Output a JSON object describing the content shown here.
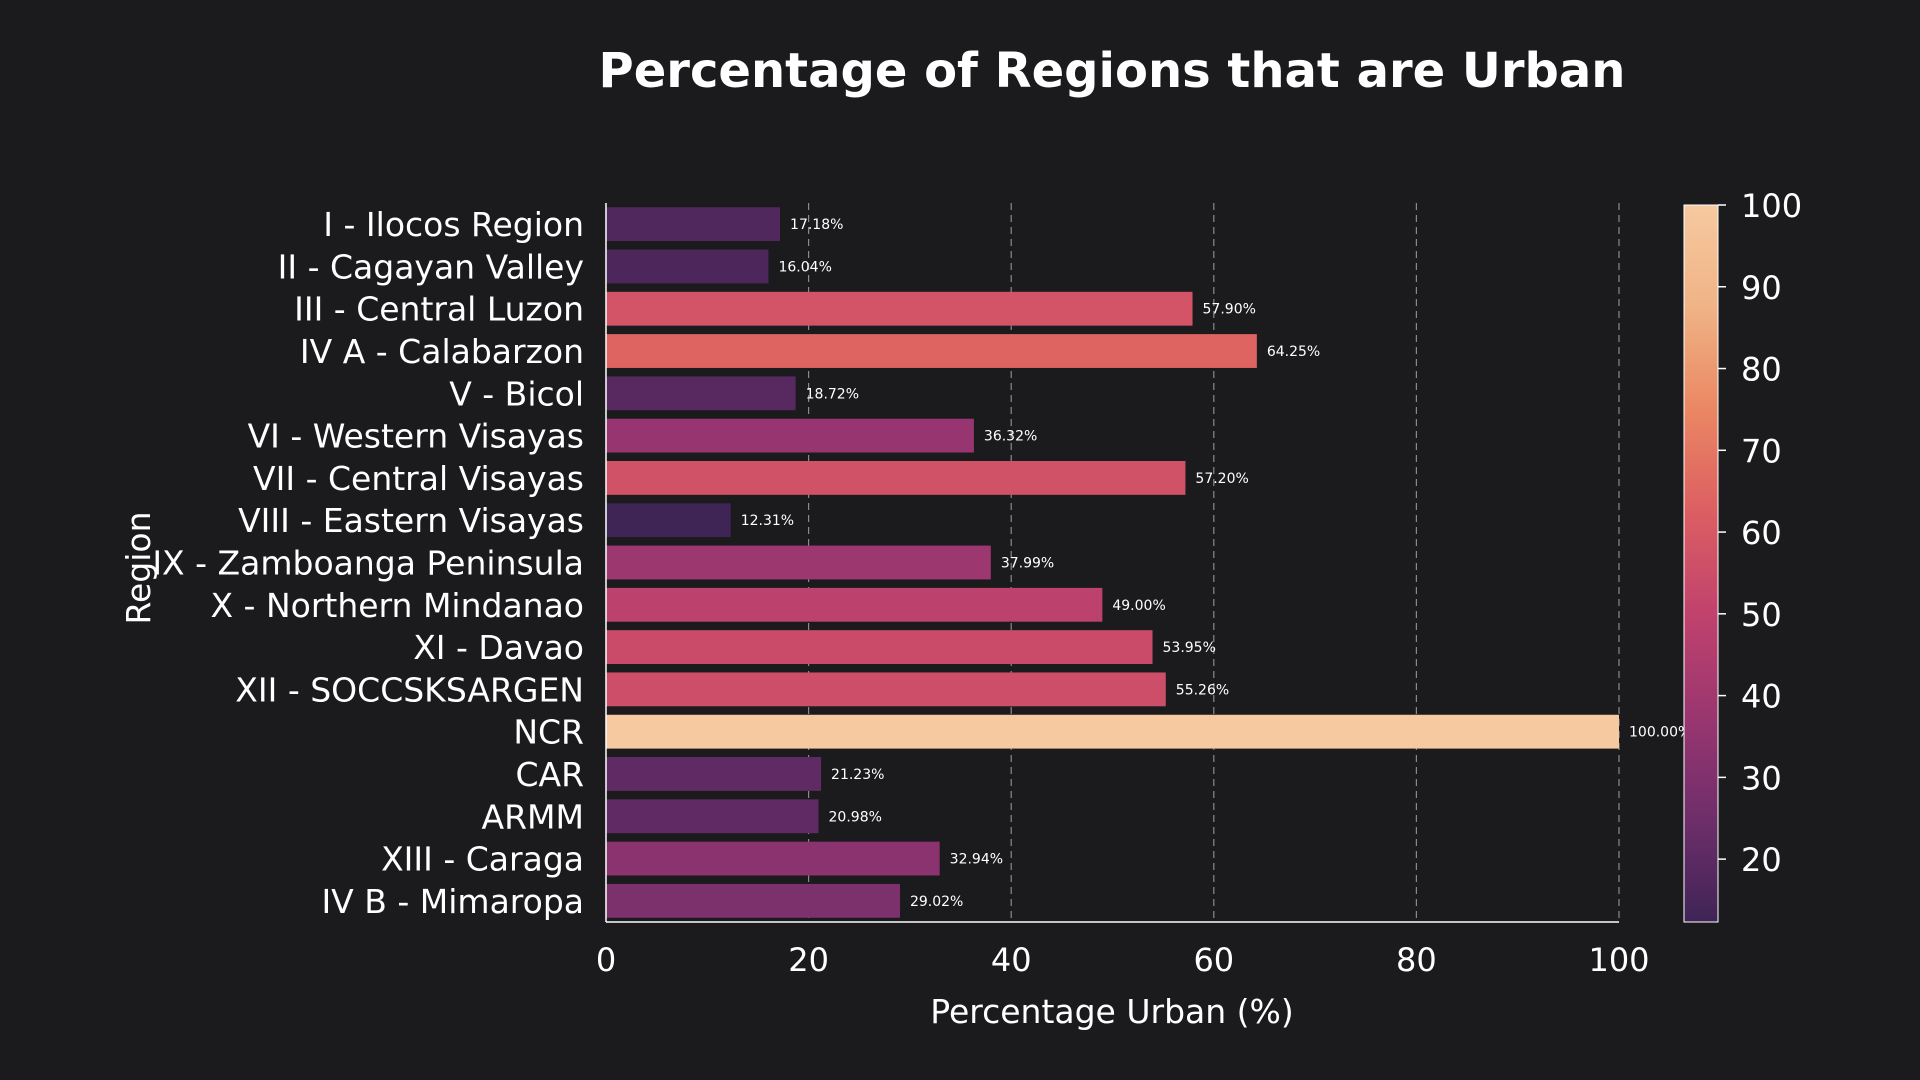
{
  "chart_data": {
    "type": "bar",
    "orientation": "horizontal",
    "title": "Percentage of Regions that are Urban",
    "xlabel": "Percentage Urban (%)",
    "ylabel": "Region",
    "xlim": [
      0,
      100
    ],
    "xticks": [
      0,
      20,
      40,
      60,
      80,
      100
    ],
    "grid": "x-dashed",
    "categories": [
      "I - Ilocos Region",
      "II - Cagayan Valley",
      "III - Central Luzon",
      "IV A - Calabarzon",
      "V - Bicol",
      "VI - Western Visayas",
      "VII - Central Visayas",
      "VIII - Eastern Visayas",
      "IX - Zamboanga Peninsula",
      "X - Northern Mindanao",
      "XI - Davao",
      "XII - SOCCSKSARGEN",
      "NCR",
      "CAR",
      "ARMM",
      "XIII - Caraga",
      "IV B - Mimaropa"
    ],
    "values": [
      17.18,
      16.04,
      57.9,
      64.25,
      18.72,
      36.32,
      57.2,
      12.31,
      37.99,
      49.0,
      53.95,
      55.26,
      100.0,
      21.23,
      20.98,
      32.94,
      29.02
    ],
    "value_labels": [
      "17.18%",
      "16.04%",
      "57.90%",
      "64.25%",
      "18.72%",
      "36.32%",
      "57.20%",
      "12.31%",
      "37.99%",
      "49.00%",
      "53.95%",
      "55.26%",
      "100.00%",
      "21.23%",
      "20.98%",
      "32.94%",
      "29.02%"
    ],
    "colorbar": {
      "range": [
        12.31,
        100
      ],
      "ticks": [
        20,
        30,
        40,
        50,
        60,
        70,
        80,
        90,
        100
      ],
      "colormap": "flare",
      "stops": [
        "#3f2456",
        "#6e2e6a",
        "#9a3670",
        "#c0426d",
        "#dc5e62",
        "#ea8763",
        "#f0b385",
        "#f6c9a0"
      ]
    }
  }
}
